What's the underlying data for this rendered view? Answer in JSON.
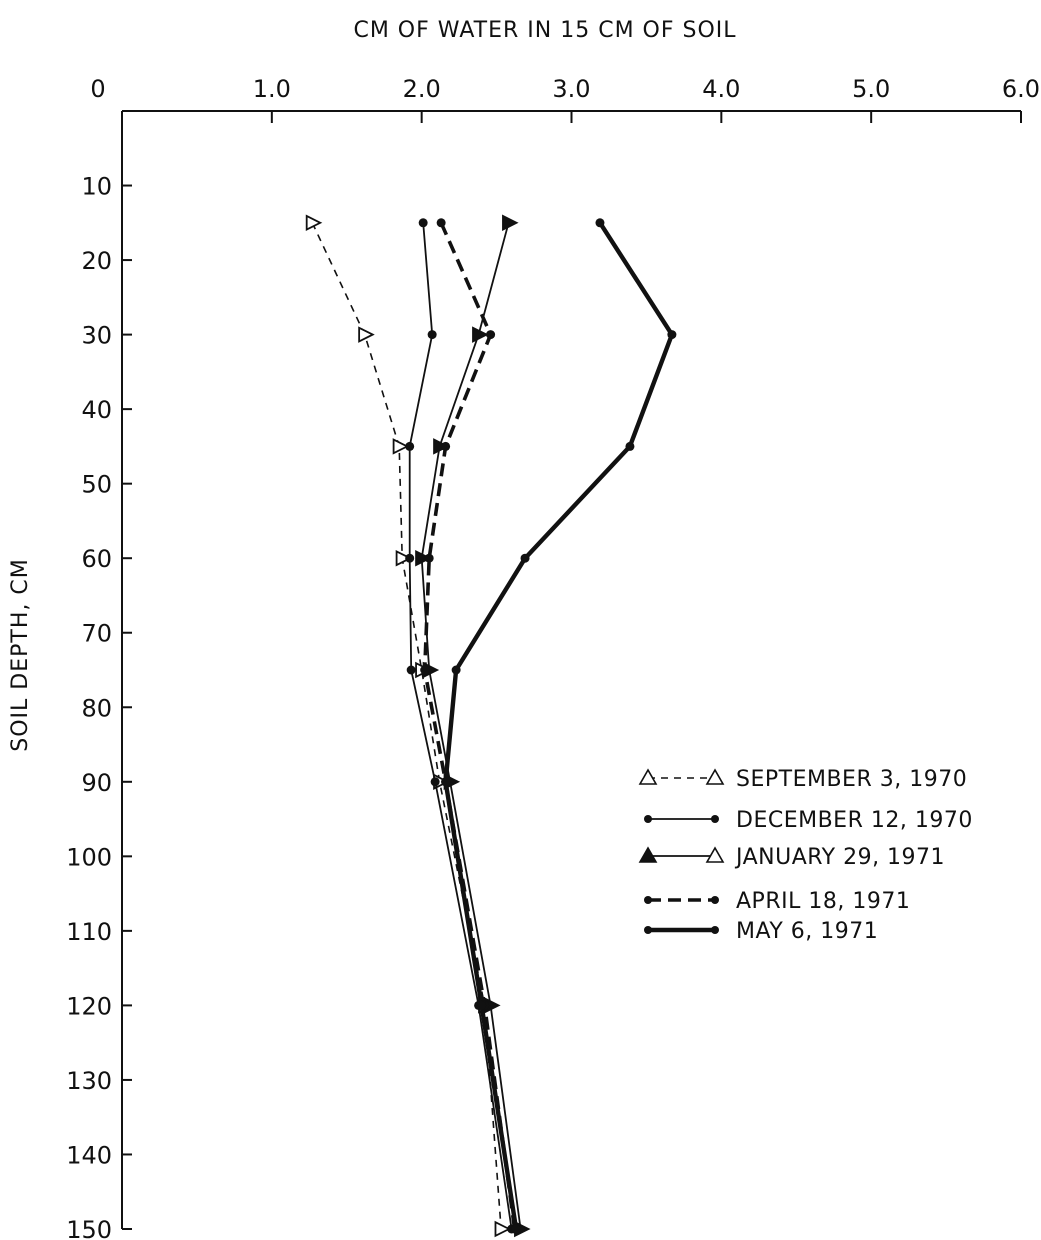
{
  "chart_data": {
    "type": "line",
    "title": "",
    "xlabel": "CM OF WATER IN 15 CM OF SOIL",
    "ylabel": "SOIL DEPTH, CM",
    "xlim": [
      0,
      6
    ],
    "ylim": [
      0,
      150
    ],
    "y_inverted": true,
    "x_axis_position": "top",
    "grid": false,
    "legend_position": "right-middle",
    "x_ticks": [
      {
        "value": 0,
        "label": "0"
      },
      {
        "value": 1,
        "label": "1.0"
      },
      {
        "value": 2,
        "label": "2.0"
      },
      {
        "value": 3,
        "label": "3.0"
      },
      {
        "value": 4,
        "label": "4.0"
      },
      {
        "value": 5,
        "label": "5.0"
      },
      {
        "value": 6,
        "label": "6.0"
      }
    ],
    "y_ticks": [
      {
        "value": 10,
        "label": "10"
      },
      {
        "value": 20,
        "label": "20"
      },
      {
        "value": 30,
        "label": "30"
      },
      {
        "value": 40,
        "label": "40"
      },
      {
        "value": 50,
        "label": "50"
      },
      {
        "value": 60,
        "label": "60"
      },
      {
        "value": 70,
        "label": "70"
      },
      {
        "value": 80,
        "label": "80"
      },
      {
        "value": 90,
        "label": "90"
      },
      {
        "value": 100,
        "label": "100"
      },
      {
        "value": 110,
        "label": "110"
      },
      {
        "value": 120,
        "label": "120"
      },
      {
        "value": 130,
        "label": "130"
      },
      {
        "value": 140,
        "label": "140"
      },
      {
        "value": 150,
        "label": "150"
      }
    ],
    "series": [
      {
        "name": "SEPTEMBER 3, 1970",
        "line": "dashed",
        "marker": "open-triangle",
        "color": "#111111",
        "points": [
          {
            "water": 1.27,
            "depth": 15
          },
          {
            "water": 1.62,
            "depth": 30
          },
          {
            "water": 1.85,
            "depth": 45
          },
          {
            "water": 1.87,
            "depth": 60
          },
          {
            "water": 2.0,
            "depth": 75
          },
          {
            "water": 2.12,
            "depth": 90
          },
          {
            "water": 2.42,
            "depth": 120
          },
          {
            "water": 2.53,
            "depth": 150
          }
        ]
      },
      {
        "name": "DECEMBER 12, 1970",
        "line": "solid-thin",
        "marker": "dot",
        "color": "#111111",
        "points": [
          {
            "water": 2.01,
            "depth": 15
          },
          {
            "water": 2.07,
            "depth": 30
          },
          {
            "water": 1.92,
            "depth": 45
          },
          {
            "water": 1.92,
            "depth": 60
          },
          {
            "water": 1.93,
            "depth": 75
          },
          {
            "water": 2.09,
            "depth": 90
          },
          {
            "water": 2.38,
            "depth": 120
          },
          {
            "water": 2.6,
            "depth": 150
          }
        ]
      },
      {
        "name": "JANUARY 29, 1971",
        "line": "solid-thin",
        "marker": "filled-triangle",
        "color": "#111111",
        "points": [
          {
            "water": 2.58,
            "depth": 15
          },
          {
            "water": 2.38,
            "depth": 30
          },
          {
            "water": 2.12,
            "depth": 45
          },
          {
            "water": 2.0,
            "depth": 60
          },
          {
            "water": 2.05,
            "depth": 75
          },
          {
            "water": 2.19,
            "depth": 90
          },
          {
            "water": 2.46,
            "depth": 120
          },
          {
            "water": 2.66,
            "depth": 150
          }
        ]
      },
      {
        "name": "APRIL 18, 1971",
        "line": "dashed-bold",
        "marker": "dot",
        "color": "#111111",
        "points": [
          {
            "water": 2.13,
            "depth": 15
          },
          {
            "water": 2.46,
            "depth": 30
          },
          {
            "water": 2.16,
            "depth": 45
          },
          {
            "water": 2.05,
            "depth": 60
          },
          {
            "water": 2.02,
            "depth": 75
          },
          {
            "water": 2.16,
            "depth": 90
          },
          {
            "water": 2.42,
            "depth": 120
          },
          {
            "water": 2.62,
            "depth": 150
          }
        ]
      },
      {
        "name": "MAY 6, 1971",
        "line": "solid-bold",
        "marker": "dot",
        "color": "#111111",
        "points": [
          {
            "water": 3.19,
            "depth": 15
          },
          {
            "water": 3.67,
            "depth": 30
          },
          {
            "water": 3.39,
            "depth": 45
          },
          {
            "water": 2.69,
            "depth": 60
          },
          {
            "water": 2.23,
            "depth": 75
          },
          {
            "water": 2.16,
            "depth": 90
          },
          {
            "water": 2.4,
            "depth": 120
          },
          {
            "water": 2.63,
            "depth": 150
          }
        ]
      }
    ]
  }
}
